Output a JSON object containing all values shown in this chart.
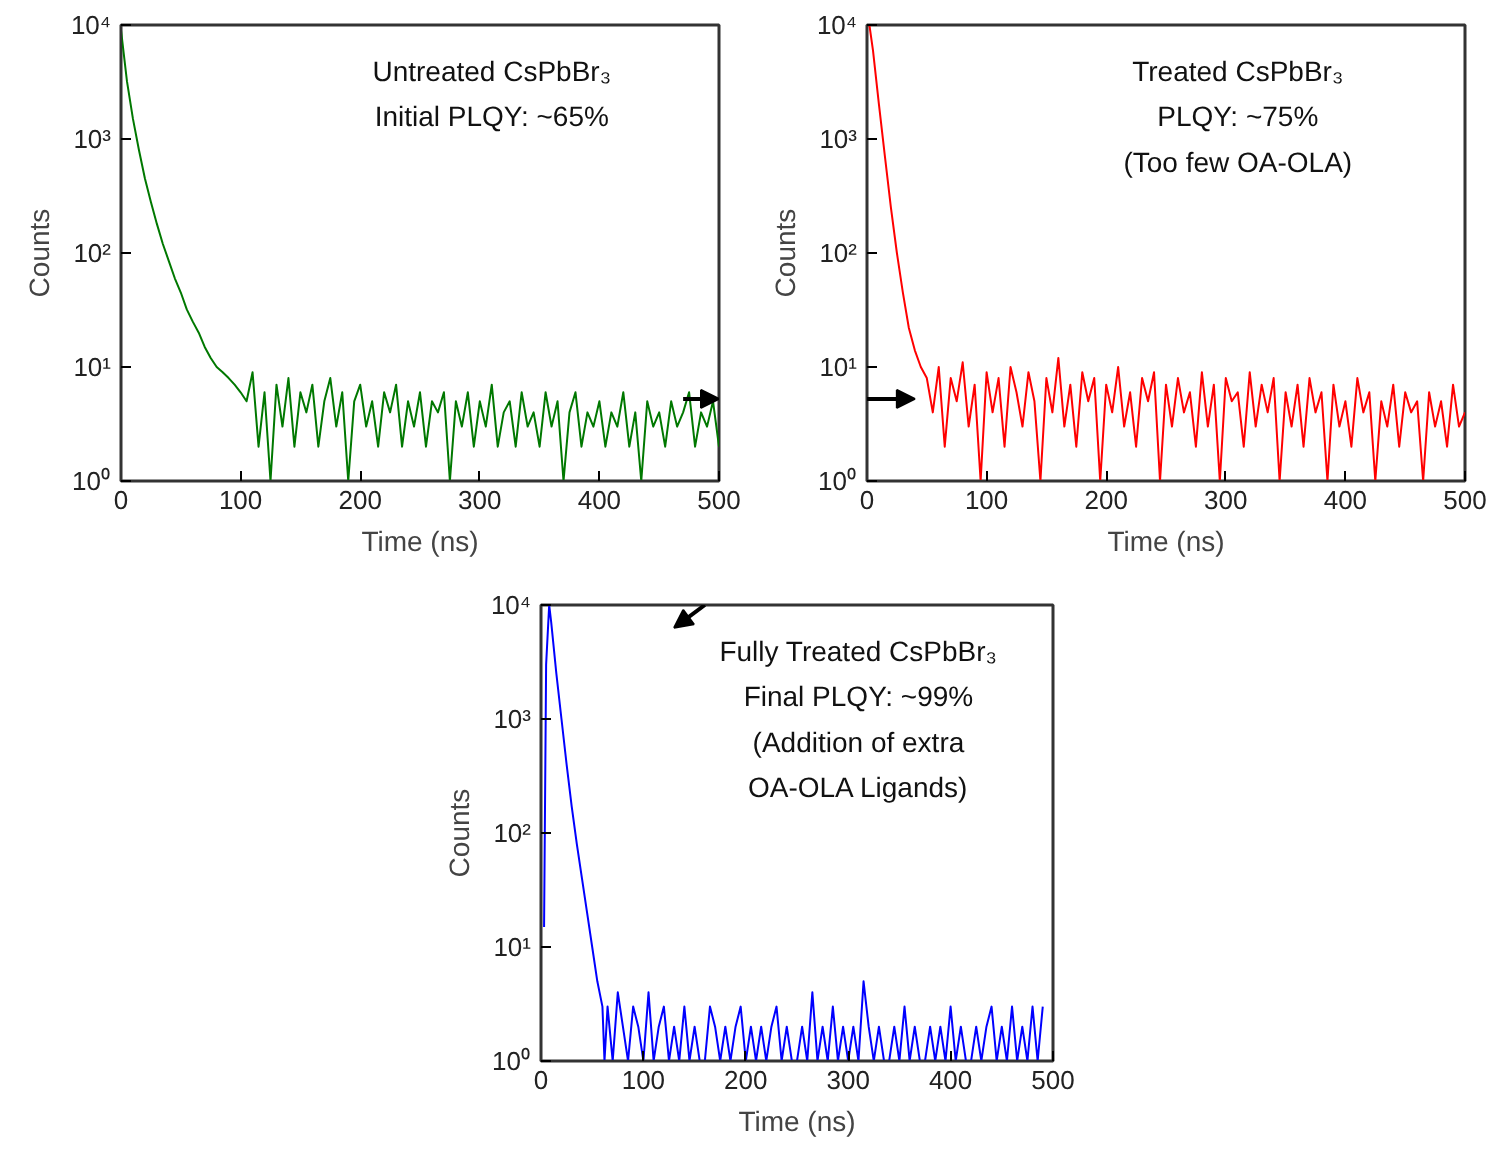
{
  "chart_data": [
    {
      "type": "line",
      "xlabel": "Time (ns)",
      "ylabel": "Counts",
      "annotations": [
        "Untreated CsPbBr₃",
        "Initial PLQY: ~65%"
      ],
      "xlim": [
        0,
        500
      ],
      "ylim": [
        1,
        10000
      ],
      "log": "y",
      "grid": false,
      "line_style": "solid",
      "xticks": [
        0,
        100,
        200,
        300,
        400,
        500
      ],
      "yticks": [
        {
          "value": 1,
          "label": "10⁰"
        },
        {
          "value": 10,
          "label": "10¹"
        },
        {
          "value": 100,
          "label": "10²"
        },
        {
          "value": 1000,
          "label": "10³"
        },
        {
          "value": 10000,
          "label": "10⁴"
        }
      ],
      "series": [
        {
          "color": "#007800",
          "x": [
            0,
            5,
            10,
            15,
            20,
            25,
            30,
            35,
            40,
            45,
            50,
            55,
            60,
            65,
            70,
            75,
            80,
            85,
            90,
            95,
            100,
            105,
            110,
            115,
            120,
            125,
            130,
            135,
            140,
            145,
            150,
            155,
            160,
            165,
            170,
            175,
            180,
            185,
            190,
            195,
            200,
            205,
            210,
            215,
            220,
            225,
            230,
            235,
            240,
            245,
            250,
            255,
            260,
            265,
            270,
            275,
            280,
            285,
            290,
            295,
            300,
            305,
            310,
            315,
            320,
            325,
            330,
            335,
            340,
            345,
            350,
            355,
            360,
            365,
            370,
            375,
            380,
            385,
            390,
            395,
            400,
            405,
            410,
            415,
            420,
            425,
            430,
            435,
            440,
            445,
            450,
            455,
            460,
            465,
            470,
            475,
            480,
            485,
            490,
            495,
            500
          ],
          "values": [
            9000,
            3200,
            1500,
            800,
            450,
            280,
            180,
            120,
            85,
            60,
            45,
            32,
            25,
            20,
            15,
            12,
            10,
            9,
            8,
            7,
            6,
            5,
            9,
            2,
            6,
            1,
            7,
            3,
            8,
            2,
            6,
            4,
            7,
            2,
            5,
            8,
            3,
            6,
            1,
            5,
            7,
            3,
            5,
            2,
            6,
            4,
            7,
            2,
            5,
            3,
            6,
            2,
            5,
            4,
            6,
            1,
            5,
            3,
            6,
            2,
            5,
            3,
            7,
            2,
            4,
            5,
            2,
            6,
            3,
            4,
            2,
            6,
            3,
            5,
            1,
            4,
            6,
            2,
            4,
            3,
            5,
            2,
            4,
            3,
            6,
            2,
            4,
            1,
            5,
            3,
            4,
            2,
            5,
            3,
            4,
            6,
            2,
            4,
            3,
            5,
            2
          ]
        }
      ]
    },
    {
      "type": "line",
      "xlabel": "Time (ns)",
      "ylabel": "Counts",
      "annotations": [
        "Treated CsPbBr₃",
        "PLQY: ~75%",
        "(Too few OA-OLA)"
      ],
      "xlim": [
        0,
        500
      ],
      "ylim": [
        1,
        10000
      ],
      "log": "y",
      "grid": false,
      "line_style": "solid",
      "xticks": [
        0,
        100,
        200,
        300,
        400,
        500
      ],
      "yticks": [
        {
          "value": 1,
          "label": "10⁰"
        },
        {
          "value": 10,
          "label": "10¹"
        },
        {
          "value": 100,
          "label": "10²"
        },
        {
          "value": 1000,
          "label": "10³"
        },
        {
          "value": 10000,
          "label": "10⁴"
        }
      ],
      "series": [
        {
          "color": "#ff0000",
          "x": [
            2,
            5,
            10,
            15,
            20,
            25,
            30,
            35,
            40,
            45,
            50,
            55,
            60,
            65,
            70,
            75,
            80,
            85,
            90,
            95,
            100,
            105,
            110,
            115,
            120,
            125,
            130,
            135,
            140,
            145,
            150,
            155,
            160,
            165,
            170,
            175,
            180,
            185,
            190,
            195,
            200,
            205,
            210,
            215,
            220,
            225,
            230,
            235,
            240,
            245,
            250,
            255,
            260,
            265,
            270,
            275,
            280,
            285,
            290,
            295,
            300,
            305,
            310,
            315,
            320,
            325,
            330,
            335,
            340,
            345,
            350,
            355,
            360,
            365,
            370,
            375,
            380,
            385,
            390,
            395,
            400,
            405,
            410,
            415,
            420,
            425,
            430,
            435,
            440,
            445,
            450,
            455,
            460,
            465,
            470,
            475,
            480,
            485,
            490,
            495,
            500
          ],
          "values": [
            10000,
            6000,
            2000,
            700,
            250,
            100,
            45,
            22,
            14,
            10,
            8,
            4,
            10,
            2,
            8,
            5,
            11,
            3,
            7,
            1,
            9,
            4,
            8,
            2,
            10,
            6,
            3,
            9,
            5,
            1,
            8,
            4,
            12,
            3,
            7,
            2,
            9,
            5,
            8,
            1,
            7,
            4,
            10,
            3,
            6,
            2,
            8,
            5,
            9,
            1,
            7,
            3,
            8,
            4,
            6,
            2,
            9,
            3,
            7,
            1,
            8,
            5,
            6,
            2,
            9,
            3,
            7,
            4,
            8,
            1,
            6,
            3,
            7,
            2,
            8,
            4,
            6,
            1,
            7,
            3,
            5,
            2,
            8,
            4,
            6,
            1,
            5,
            3,
            7,
            2,
            6,
            4,
            5,
            1,
            6,
            3,
            5,
            2,
            7,
            3,
            4
          ]
        }
      ]
    },
    {
      "type": "line",
      "xlabel": "Time (ns)",
      "ylabel": "Counts",
      "annotations": [
        "Fully Treated CsPbBr₃",
        "Final PLQY: ~99%",
        "(Addition of extra",
        "OA-OLA Ligands)"
      ],
      "xlim": [
        0,
        500
      ],
      "ylim": [
        1,
        10000
      ],
      "log": "y",
      "grid": false,
      "line_style": "solid",
      "xticks": [
        0,
        100,
        200,
        300,
        400,
        500
      ],
      "yticks": [
        {
          "value": 1,
          "label": "10⁰"
        },
        {
          "value": 10,
          "label": "10¹"
        },
        {
          "value": 100,
          "label": "10²"
        },
        {
          "value": 1000,
          "label": "10³"
        },
        {
          "value": 10000,
          "label": "10⁴"
        }
      ],
      "series": [
        {
          "color": "#0000ff",
          "x": [
            3,
            5,
            8,
            10,
            15,
            20,
            25,
            30,
            35,
            40,
            45,
            50,
            55,
            60,
            62,
            65,
            70,
            75,
            80,
            85,
            90,
            95,
            100,
            105,
            110,
            115,
            120,
            125,
            130,
            135,
            140,
            145,
            150,
            155,
            160,
            165,
            170,
            175,
            180,
            185,
            190,
            195,
            200,
            205,
            210,
            215,
            220,
            225,
            230,
            235,
            240,
            245,
            250,
            255,
            260,
            265,
            270,
            275,
            280,
            285,
            290,
            295,
            300,
            305,
            310,
            315,
            320,
            325,
            330,
            335,
            340,
            345,
            350,
            355,
            360,
            365,
            370,
            375,
            380,
            385,
            390,
            395,
            400,
            405,
            410,
            415,
            420,
            425,
            430,
            435,
            440,
            445,
            450,
            455,
            460,
            465,
            470,
            475,
            480,
            485,
            490
          ],
          "values": [
            15,
            3000,
            10000,
            7000,
            2500,
            1000,
            400,
            170,
            80,
            40,
            20,
            10,
            5,
            3,
            1,
            3,
            1,
            4,
            2,
            1,
            3,
            2,
            1,
            4,
            1,
            2,
            3,
            1,
            2,
            1,
            3,
            1,
            2,
            1,
            1,
            3,
            2,
            1,
            2,
            1,
            2,
            3,
            1,
            2,
            1,
            2,
            1,
            2,
            3,
            1,
            2,
            1,
            1,
            2,
            1,
            4,
            1,
            2,
            1,
            3,
            1,
            2,
            1,
            2,
            1,
            5,
            2,
            1,
            2,
            1,
            1,
            2,
            1,
            3,
            1,
            2,
            1,
            1,
            2,
            1,
            2,
            1,
            3,
            1,
            2,
            1,
            1,
            2,
            1,
            2,
            3,
            1,
            2,
            1,
            3,
            1,
            2,
            1,
            3,
            1,
            3
          ]
        }
      ]
    }
  ]
}
